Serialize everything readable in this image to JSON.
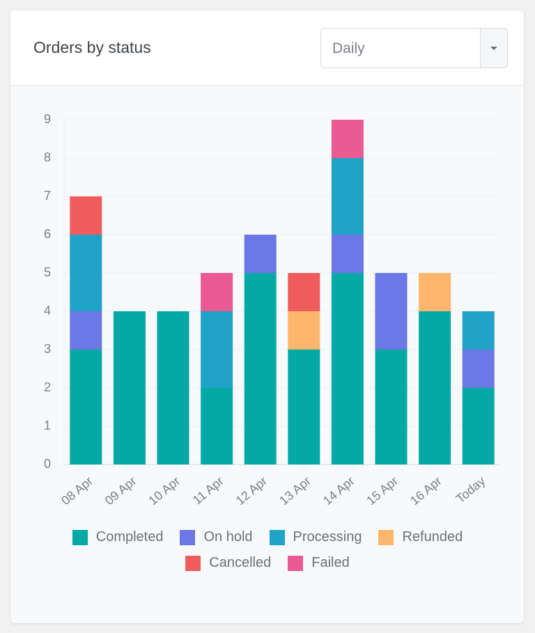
{
  "period_select": "Daily",
  "chart_data": {
    "type": "stacked_bar",
    "title": "Orders by status",
    "categories": [
      "08 Apr",
      "09 Apr",
      "10 Apr",
      "11 Apr",
      "12 Apr",
      "13 Apr",
      "14 Apr",
      "15 Apr",
      "16 Apr",
      "Today"
    ],
    "series": [
      {
        "name": "Completed",
        "color": "#04a9a5",
        "values": [
          3,
          4,
          4,
          2,
          5,
          3,
          5,
          3,
          4,
          2
        ]
      },
      {
        "name": "On hold",
        "color": "#6b78e6",
        "values": [
          1,
          0,
          0,
          0,
          1,
          0,
          1,
          2,
          0,
          1
        ]
      },
      {
        "name": "Processing",
        "color": "#1fa3c9",
        "values": [
          2,
          0,
          0,
          2,
          0,
          0,
          2,
          0,
          0,
          1
        ]
      },
      {
        "name": "Refunded",
        "color": "#fdb66b",
        "values": [
          0,
          0,
          0,
          0,
          0,
          1,
          0,
          0,
          1,
          0
        ]
      },
      {
        "name": "Cancelled",
        "color": "#ef5c5c",
        "values": [
          1,
          0,
          0,
          0,
          0,
          1,
          0,
          0,
          0,
          0
        ]
      },
      {
        "name": "Failed",
        "color": "#ea5a93",
        "values": [
          0,
          0,
          0,
          1,
          0,
          0,
          1,
          0,
          0,
          0
        ]
      }
    ],
    "ylim": [
      0,
      9
    ],
    "yticks": [
      0,
      1,
      2,
      3,
      4,
      5,
      6,
      7,
      8,
      9
    ],
    "grid": true
  }
}
